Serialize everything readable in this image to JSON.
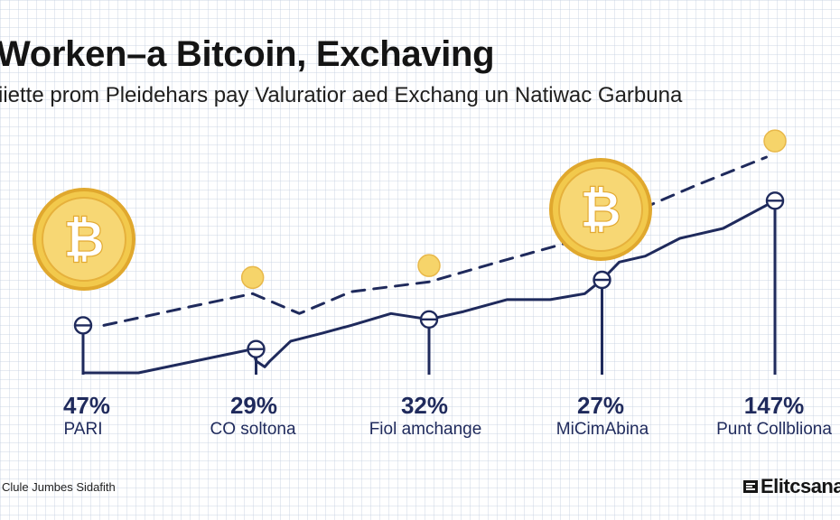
{
  "header": {
    "title": "Worken–a Bitcoin, Exchaving",
    "subtitle": "iiette prom Pleidehars pay Valuratior aed Exchang un Natiwac Garbuna"
  },
  "footer": {
    "note": "Clule Jumbes Sidafith",
    "brand": "Elitcsana"
  },
  "colors": {
    "line": "#1f2a5c",
    "coin": "#f2c94c",
    "coin_dark": "#e0a82e",
    "dot": "#f6d46a"
  },
  "chart_data": {
    "type": "line",
    "categories": [
      "PARI",
      "CO soltona",
      "Fiol amchange",
      "MiCimAbina",
      "Punt Collbliona"
    ],
    "data_labels": [
      "47%",
      "29%",
      "32%",
      "27%",
      "147%"
    ],
    "series": [
      {
        "style": "solid",
        "points": [
          [
            0.0,
            0
          ],
          [
            0.32,
            0
          ],
          [
            0.98,
            1.2
          ],
          [
            1.0,
            0.6
          ],
          [
            1.05,
            0.3
          ],
          [
            1.08,
            0.6
          ],
          [
            1.2,
            1.6
          ],
          [
            1.38,
            2.0
          ],
          [
            1.55,
            2.4
          ],
          [
            1.78,
            3.0
          ],
          [
            2.0,
            2.7
          ],
          [
            2.2,
            3.1
          ],
          [
            2.45,
            3.7
          ],
          [
            2.7,
            3.7
          ],
          [
            2.9,
            4.0
          ],
          [
            3.0,
            4.7
          ],
          [
            3.1,
            5.6
          ],
          [
            3.25,
            5.9
          ],
          [
            3.45,
            6.8
          ],
          [
            3.7,
            7.3
          ],
          [
            4.0,
            8.7
          ]
        ]
      },
      {
        "style": "dashed",
        "points": [
          [
            0.12,
            2.4
          ],
          [
            0.65,
            3.4
          ],
          [
            0.98,
            4.0
          ],
          [
            1.25,
            3.0
          ],
          [
            1.55,
            4.1
          ],
          [
            2.0,
            4.6
          ],
          [
            2.4,
            5.6
          ],
          [
            2.85,
            6.7
          ],
          [
            3.15,
            8.0
          ],
          [
            3.55,
            9.5
          ],
          [
            3.95,
            10.9
          ]
        ]
      }
    ],
    "markers": [
      0,
      1,
      2,
      3,
      4
    ],
    "coin_markers": [
      0.98,
      2.0,
      4.0
    ],
    "large_coins": [
      0.0,
      3.0
    ],
    "ylim": [
      0,
      12
    ],
    "grid": true,
    "legend": "none"
  }
}
